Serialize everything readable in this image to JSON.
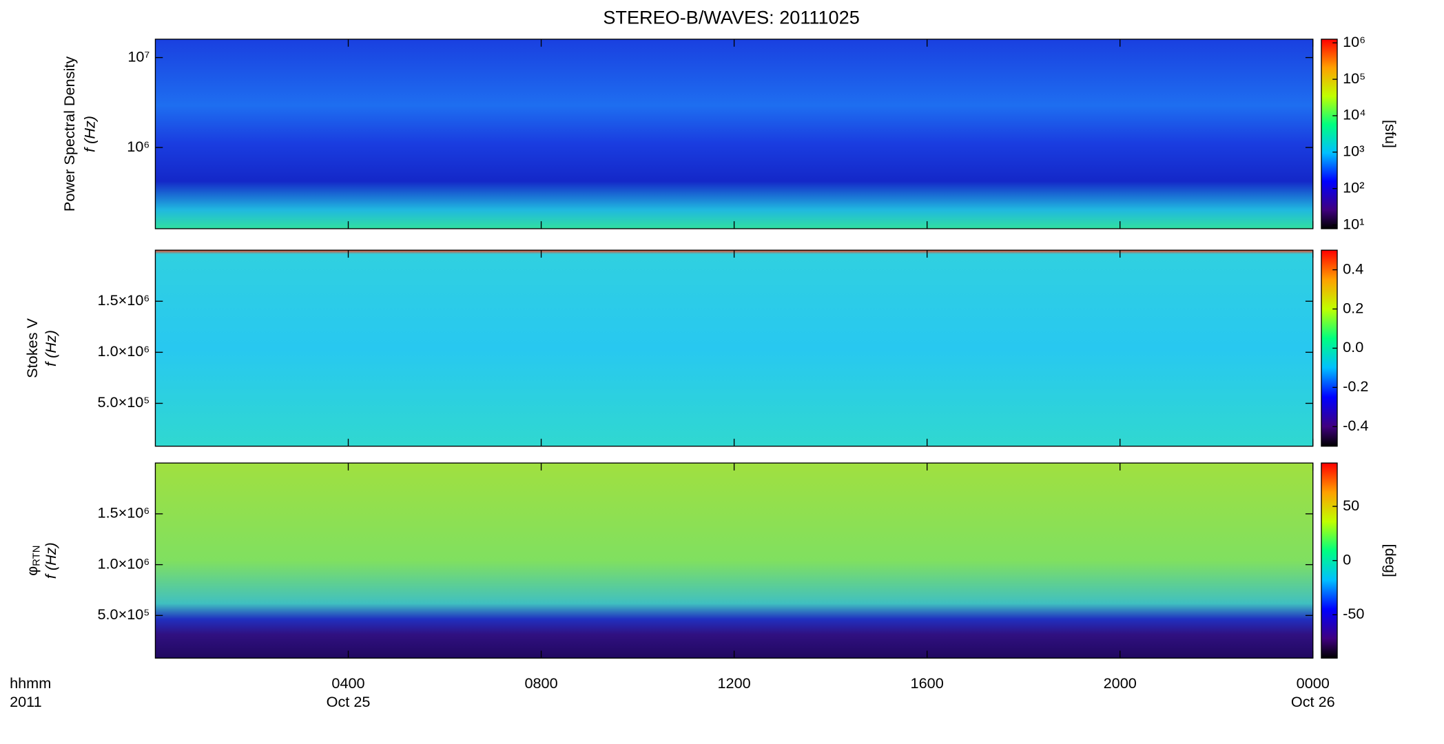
{
  "title": "STEREO-B/WAVES: 20111025",
  "corner_labels": [
    "hhmm",
    "2011"
  ],
  "chart_data": [
    {
      "type": "spectrogram",
      "ylabel": [
        "Power Spectral Density",
        "f (Hz)"
      ],
      "ylog": true,
      "ylim": [
        125000,
        16000000
      ],
      "yticks": [
        {
          "value": 1000000,
          "label": "10⁶"
        },
        {
          "value": 10000000,
          "label": "10⁷"
        }
      ],
      "xlim": [
        0,
        24
      ],
      "colorbar": {
        "log": true,
        "clim": [
          7.9,
          1260000
        ],
        "label": "[sfu]",
        "ticks": [
          {
            "value": 10,
            "label": "10¹"
          },
          {
            "value": 100,
            "label": "10²"
          },
          {
            "value": 1000,
            "label": "10³"
          },
          {
            "value": 10000,
            "label": "10⁴"
          },
          {
            "value": 100000,
            "label": "10⁵"
          },
          {
            "value": 1000000,
            "label": "10⁶"
          }
        ]
      }
    },
    {
      "type": "spectrogram",
      "ylabel": [
        "Stokes V",
        "f (Hz)"
      ],
      "ylog": false,
      "ylim": [
        80000,
        2000000
      ],
      "yticks": [
        {
          "value": 500000,
          "label": "5.0×10⁵"
        },
        {
          "value": 1000000,
          "label": "1.0×10⁶"
        },
        {
          "value": 1500000,
          "label": "1.5×10⁶"
        }
      ],
      "xlim": [
        0,
        24
      ],
      "colorbar": {
        "log": false,
        "clim": [
          -0.5,
          0.5
        ],
        "ticks": [
          -0.4,
          -0.2,
          {
            "value": 0,
            "label": "0.0"
          },
          0.2,
          0.4
        ]
      }
    },
    {
      "type": "spectrogram",
      "ylabel": [
        "φ",
        "f (Hz)"
      ],
      "ylabel_subscript": "RTN",
      "ylog": false,
      "ylim": [
        80000,
        2000000
      ],
      "yticks": [
        {
          "value": 500000,
          "label": "5.0×10⁵"
        },
        {
          "value": 1000000,
          "label": "1.0×10⁶"
        },
        {
          "value": 1500000,
          "label": "1.5×10⁶"
        }
      ],
      "xlim": [
        0,
        24
      ],
      "xticks": [
        {
          "value": 4,
          "label": "0400"
        },
        {
          "value": 8,
          "label": "0800"
        },
        {
          "value": 12,
          "label": "1200"
        },
        {
          "value": 16,
          "label": "1600"
        },
        {
          "value": 20,
          "label": "2000"
        },
        {
          "value": 24,
          "label": "0000"
        }
      ],
      "xtick_dates": [
        {
          "value": 4,
          "label": "Oct 25"
        },
        {
          "value": 24,
          "label": "Oct 26"
        }
      ],
      "colorbar": {
        "log": false,
        "clim": [
          -90,
          90
        ],
        "label": "[deg]",
        "ticks": [
          -50,
          0,
          50
        ]
      }
    }
  ]
}
